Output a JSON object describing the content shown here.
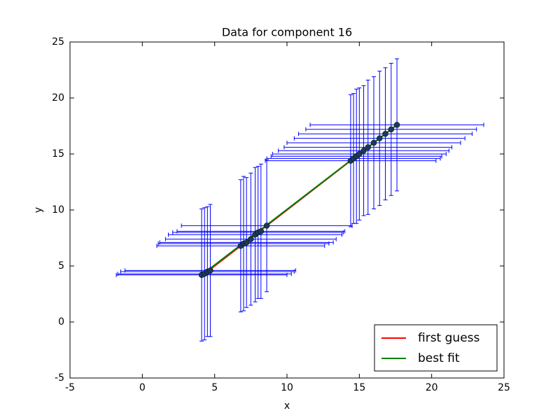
{
  "chart_data": {
    "type": "errorbar",
    "title": "Data for component 16",
    "xlabel": "x",
    "ylabel": "y",
    "xlim": [
      -5,
      25
    ],
    "ylim": [
      -5,
      25
    ],
    "xticks": [
      -5,
      0,
      5,
      10,
      15,
      20,
      25
    ],
    "yticks": [
      -5,
      0,
      5,
      10,
      15,
      20,
      25
    ],
    "points": {
      "color": "#0000ff",
      "marker_color": "#1a3a5a",
      "x": [
        4.1,
        4.3,
        4.5,
        4.7,
        6.8,
        7.0,
        7.2,
        7.5,
        7.8,
        8.0,
        8.2,
        8.6,
        14.4,
        14.6,
        14.8,
        15.0,
        15.3,
        15.6,
        16.0,
        16.4,
        16.8,
        17.2,
        17.6
      ],
      "values": [
        4.2,
        4.3,
        4.5,
        4.6,
        6.8,
        7.0,
        7.1,
        7.4,
        7.8,
        8.0,
        8.1,
        8.6,
        14.4,
        14.6,
        14.8,
        15.0,
        15.3,
        15.6,
        16.0,
        16.4,
        16.8,
        17.2,
        17.6
      ],
      "xerr": [
        5.9,
        6.0,
        6.0,
        5.9,
        5.8,
        5.9,
        6.0,
        5.9,
        6.0,
        5.9,
        5.8,
        5.9,
        5.9,
        6.0,
        5.9,
        6.0,
        5.9,
        5.8,
        6.0,
        5.9,
        6.0,
        5.9,
        6.0
      ],
      "yerr": [
        5.9,
        5.9,
        5.8,
        5.9,
        5.9,
        6.0,
        5.8,
        5.9,
        6.0,
        5.9,
        6.0,
        5.9,
        5.9,
        5.8,
        6.0,
        5.9,
        5.8,
        6.0,
        5.9,
        6.0,
        5.9,
        5.9,
        5.9
      ]
    },
    "series": [
      {
        "name": "first guess",
        "color": "#ff0000",
        "x": [
          4.1,
          17.7
        ],
        "values": [
          4.1,
          17.7
        ]
      },
      {
        "name": "best fit",
        "color": "#008000",
        "x": [
          4.1,
          17.7
        ],
        "values": [
          4.2,
          17.7
        ]
      }
    ],
    "legend": "lower right"
  }
}
